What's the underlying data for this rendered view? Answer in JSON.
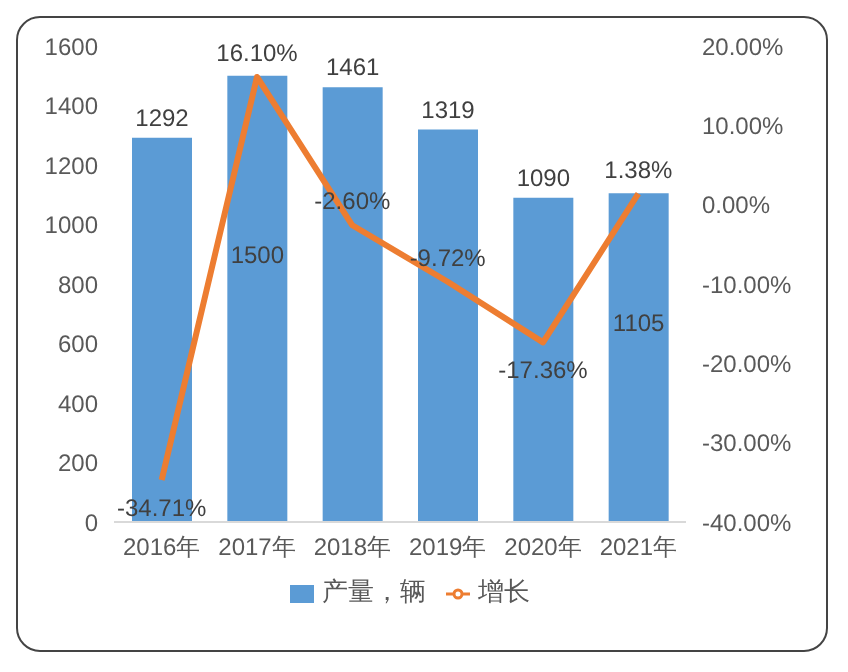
{
  "chart_data": {
    "type": "bar",
    "categories": [
      "2016年",
      "2017年",
      "2018年",
      "2019年",
      "2020年",
      "2021年"
    ],
    "series": [
      {
        "name": "产量，辆",
        "color": "#5b9bd5",
        "values": [
          1292,
          1500,
          1461,
          1319,
          1090,
          1105
        ],
        "value_labels": [
          "1292",
          "1500",
          "1461",
          "1319",
          "1090",
          "1105"
        ]
      },
      {
        "name": "增长",
        "type": "line",
        "axis": "y2",
        "color": "#ed7d31",
        "values": [
          -34.71,
          16.1,
          -2.6,
          -9.72,
          -17.36,
          1.38
        ],
        "value_labels": [
          "-34.71%",
          "16.10%",
          "-2.60%",
          "-9.72%",
          "-17.36%",
          "1.38%"
        ]
      }
    ],
    "ylim": [
      0,
      1600
    ],
    "yticks": [
      0,
      200,
      400,
      600,
      800,
      1000,
      1200,
      1400,
      1600
    ],
    "y2lim": [
      -40,
      20
    ],
    "y2ticks": [
      {
        "value": -40,
        "label": "-40.00%"
      },
      {
        "value": -30,
        "label": "-30.00%"
      },
      {
        "value": -20,
        "label": "-20.00%"
      },
      {
        "value": -10,
        "label": "-10.00%"
      },
      {
        "value": 0,
        "label": "0.00%"
      },
      {
        "value": 10,
        "label": "10.00%"
      },
      {
        "value": 20,
        "label": "20.00%"
      }
    ],
    "grid": false,
    "legend": "bottom",
    "marker": "none",
    "line_style": "solid"
  }
}
